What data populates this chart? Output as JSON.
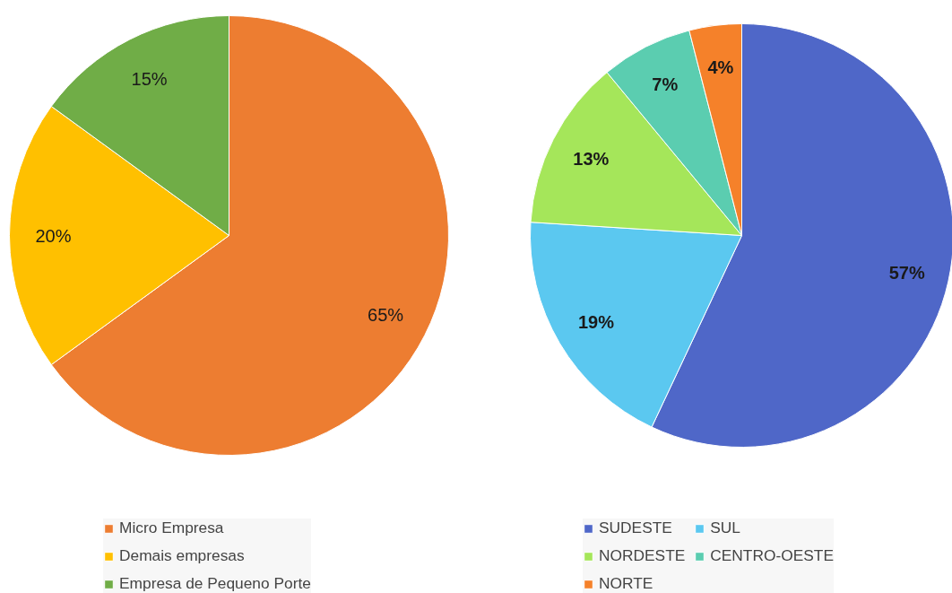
{
  "chart_data": [
    {
      "type": "pie",
      "categories": [
        "Micro Empresa",
        "Demais empresas",
        "Empresa de Pequeno Porte"
      ],
      "values": [
        65,
        20,
        15
      ],
      "colors": [
        "#ed7d31",
        "#ffc000",
        "#70ad47"
      ],
      "value_labels": [
        "65%",
        "20%",
        "15%"
      ],
      "legend": "bottom"
    },
    {
      "type": "pie",
      "categories": [
        "SUDESTE",
        "SUL",
        "NORDESTE",
        "CENTRO-OESTE",
        "NORTE"
      ],
      "values": [
        57,
        19,
        13,
        7,
        4
      ],
      "colors": [
        "#4f67c8",
        "#5bc8f0",
        "#a5e65a",
        "#5bcdb0",
        "#f5812a"
      ],
      "value_labels": [
        "57%",
        "19%",
        "13%",
        "7%",
        "4%"
      ],
      "legend": "bottom"
    }
  ]
}
